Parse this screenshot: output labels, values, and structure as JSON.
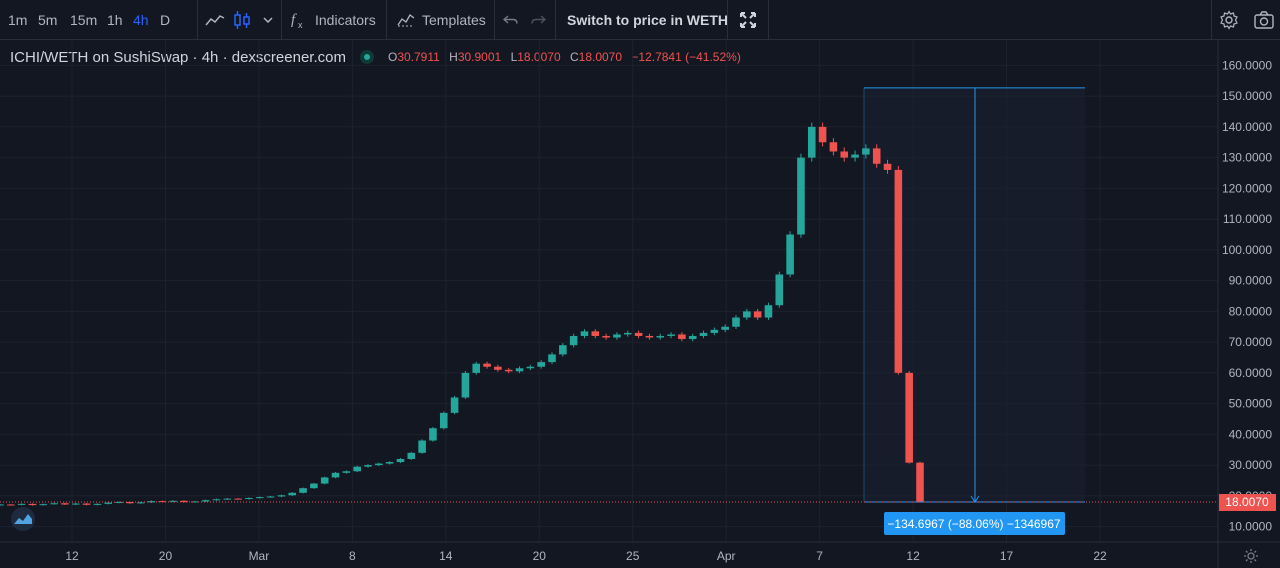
{
  "toolbar": {
    "intervals": [
      "1m",
      "5m",
      "15m",
      "1h",
      "4h",
      "D"
    ],
    "active_interval": "4h",
    "indicators_label": "Indicators",
    "templates_label": "Templates",
    "switch_label": "Switch to price in WETH"
  },
  "legend": {
    "symbol": "ICHI/WETH on SushiSwap · 4h · dexscreener.com",
    "o_key": "O",
    "o_val": "30.7911",
    "h_key": "H",
    "h_val": "30.9001",
    "l_key": "L",
    "l_val": "18.0070",
    "c_key": "C",
    "c_val": "18.0070",
    "change": "−12.7841 (−41.52%)"
  },
  "colors": {
    "background": "#131722",
    "up": "#26a69a",
    "down": "#ef5350",
    "measure": "#2196f3",
    "grid": "#1e222d"
  },
  "chart_data": {
    "type": "candlestick",
    "ylim": [
      5,
      165
    ],
    "y_ticks": [
      "10.0000",
      "20.0000",
      "30.0000",
      "40.0000",
      "50.0000",
      "60.0000",
      "70.0000",
      "80.0000",
      "90.0000",
      "100.0000",
      "110.0000",
      "120.0000",
      "130.0000",
      "140.0000",
      "150.0000",
      "160.0000"
    ],
    "x_ticks": [
      "12",
      "20",
      "Mar",
      "8",
      "14",
      "20",
      "25",
      "Apr",
      "7",
      "12",
      "17",
      "22"
    ],
    "last_price_label": "18.0070",
    "measure_label": "−134.6967 (−88.06%) −1346967",
    "series": [
      {
        "values": [
          17.2,
          17.1,
          17.4,
          17.0,
          17.3,
          17.6,
          17.2,
          17.5,
          17.1,
          17.4,
          17.8,
          18.0,
          17.6,
          17.9,
          18.3,
          18.1,
          18.4,
          18.0,
          18.2,
          18.6,
          18.9,
          19.1,
          19.0,
          19.3,
          19.6,
          19.8,
          20.2,
          21.0,
          22.5,
          24.0,
          26.0,
          27.5,
          28.0,
          29.5,
          30.0,
          30.5,
          31.0,
          32.0,
          34.0,
          38.0,
          42.0,
          47.0,
          52.0,
          60.0,
          63.0,
          62.0,
          61.0,
          60.5,
          61.5,
          62.0,
          63.5,
          66.0,
          69.0,
          72.0,
          73.5,
          72.0,
          71.5,
          72.5,
          73.0,
          72.0,
          71.5,
          72.0,
          72.5,
          71.0,
          72.0,
          73.0,
          74.0,
          75.0,
          78.0,
          80.0,
          78.0,
          82.0,
          92.0,
          105.0,
          130.0,
          140.0,
          135.0,
          132.0,
          130.0,
          131.0,
          133.0,
          128.0,
          126.0,
          60.0,
          30.8,
          18.0
        ]
      }
    ]
  }
}
